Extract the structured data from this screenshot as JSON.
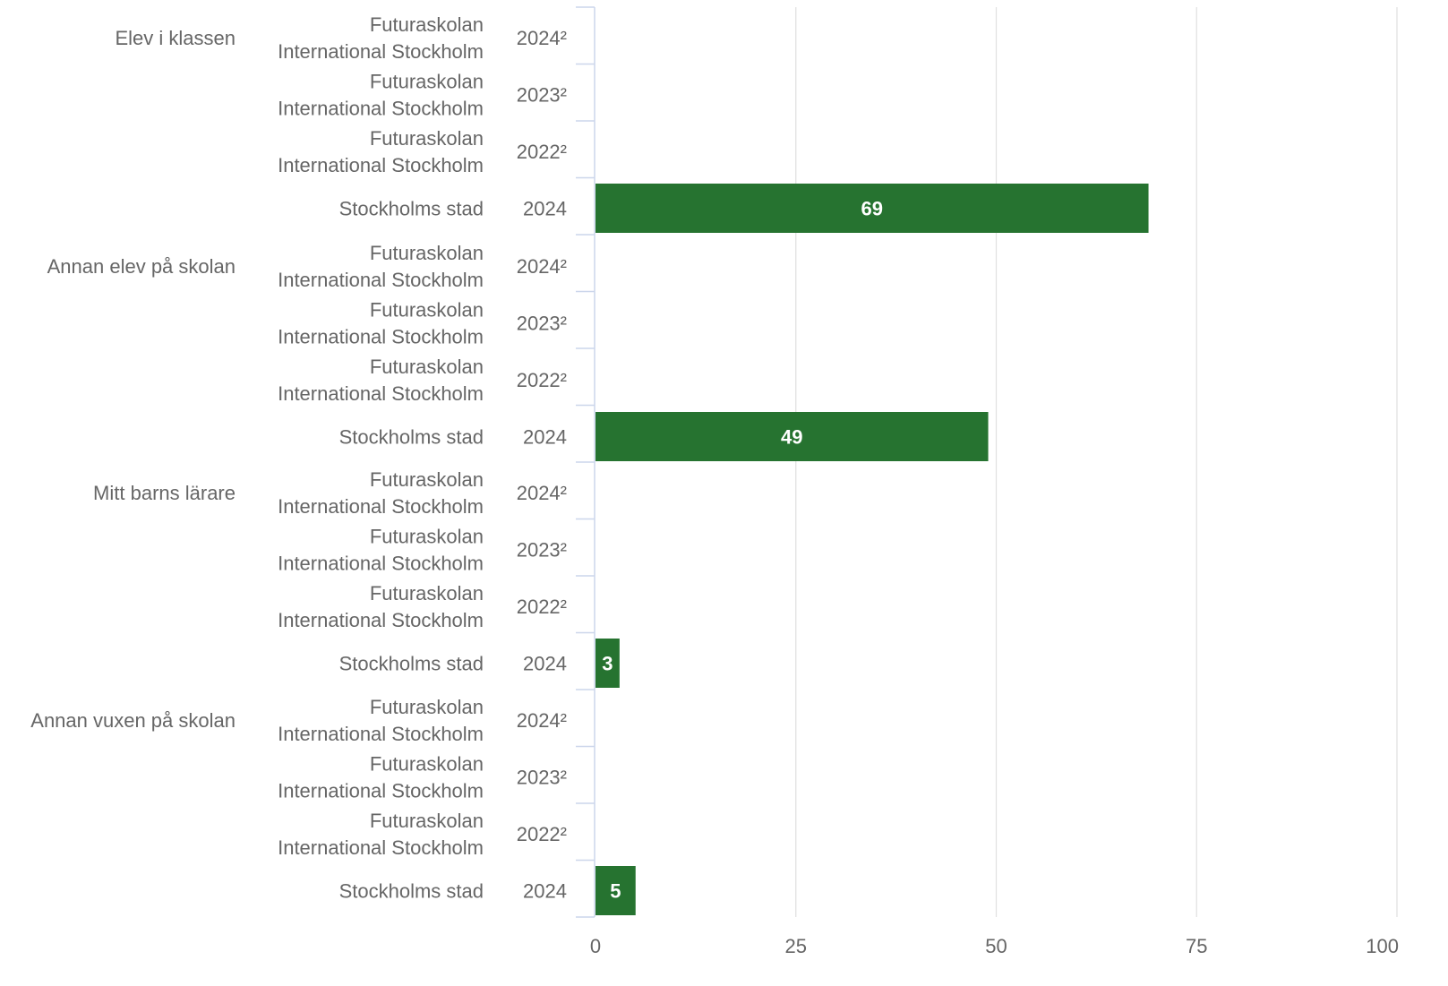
{
  "chart_data": {
    "type": "bar",
    "orientation": "horizontal",
    "groups": [
      {
        "label": "Elev i klassen",
        "rows": [
          {
            "entity": [
              "Futuraskolan",
              "International Stockholm"
            ],
            "year": "2024²",
            "value": null
          },
          {
            "entity": [
              "Futuraskolan",
              "International Stockholm"
            ],
            "year": "2023²",
            "value": null
          },
          {
            "entity": [
              "Futuraskolan",
              "International Stockholm"
            ],
            "year": "2022²",
            "value": null
          },
          {
            "entity": [
              "Stockholms stad"
            ],
            "year": "2024",
            "value": 69
          }
        ]
      },
      {
        "label": "Annan elev på skolan",
        "rows": [
          {
            "entity": [
              "Futuraskolan",
              "International Stockholm"
            ],
            "year": "2024²",
            "value": null
          },
          {
            "entity": [
              "Futuraskolan",
              "International Stockholm"
            ],
            "year": "2023²",
            "value": null
          },
          {
            "entity": [
              "Futuraskolan",
              "International Stockholm"
            ],
            "year": "2022²",
            "value": null
          },
          {
            "entity": [
              "Stockholms stad"
            ],
            "year": "2024",
            "value": 49
          }
        ]
      },
      {
        "label": "Mitt barns lärare",
        "rows": [
          {
            "entity": [
              "Futuraskolan",
              "International Stockholm"
            ],
            "year": "2024²",
            "value": null
          },
          {
            "entity": [
              "Futuraskolan",
              "International Stockholm"
            ],
            "year": "2023²",
            "value": null
          },
          {
            "entity": [
              "Futuraskolan",
              "International Stockholm"
            ],
            "year": "2022²",
            "value": null
          },
          {
            "entity": [
              "Stockholms stad"
            ],
            "year": "2024",
            "value": 3
          }
        ]
      },
      {
        "label": "Annan vuxen på skolan",
        "rows": [
          {
            "entity": [
              "Futuraskolan",
              "International Stockholm"
            ],
            "year": "2024²",
            "value": null
          },
          {
            "entity": [
              "Futuraskolan",
              "International Stockholm"
            ],
            "year": "2023²",
            "value": null
          },
          {
            "entity": [
              "Futuraskolan",
              "International Stockholm"
            ],
            "year": "2022²",
            "value": null
          },
          {
            "entity": [
              "Stockholms stad"
            ],
            "year": "2024",
            "value": 5
          }
        ]
      }
    ],
    "xlim": [
      0,
      100
    ],
    "xticks": [
      "0",
      "25",
      "50",
      "75",
      "100"
    ],
    "grid": true,
    "bar_color": "#267330",
    "grid_color": "#e0e0e0",
    "axis_color": "#ccd6eb",
    "label_color": "#666666"
  }
}
